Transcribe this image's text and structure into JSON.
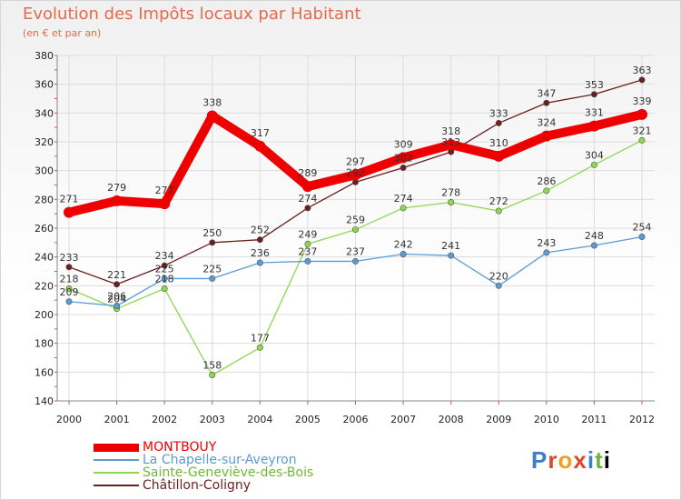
{
  "chart_data": {
    "type": "line",
    "title": "Evolution des Impôts locaux par Habitant",
    "subtitle": "(en € et par an)",
    "x": [
      "2000",
      "2001",
      "2002",
      "2003",
      "2004",
      "2005",
      "2006",
      "2007",
      "2008",
      "2009",
      "2010",
      "2011",
      "2012"
    ],
    "ylim": [
      140,
      380
    ],
    "yticks": [
      140,
      160,
      180,
      200,
      220,
      240,
      260,
      280,
      300,
      320,
      340,
      360,
      380
    ],
    "grid": true,
    "legend_position": "bottom-left",
    "series": [
      {
        "name": "MONTBOUY",
        "color": "#ee0000",
        "values": [
          271,
          279,
          277,
          338,
          317,
          289,
          297,
          309,
          318,
          310,
          324,
          331,
          339
        ]
      },
      {
        "name": "La Chapelle-sur-Aveyron",
        "color": "#5b9bd5",
        "values": [
          209,
          206,
          225,
          225,
          236,
          237,
          237,
          242,
          241,
          220,
          243,
          248,
          254
        ]
      },
      {
        "name": "Sainte-Geneviève-des-Bois",
        "color": "#8ed850",
        "values": [
          218,
          204,
          218,
          158,
          177,
          249,
          259,
          274,
          278,
          272,
          286,
          304,
          321
        ]
      },
      {
        "name": "Châtillon-Coligny",
        "color": "#6b1e1e",
        "values": [
          233,
          221,
          234,
          250,
          252,
          274,
          292,
          302,
          313,
          333,
          347,
          353,
          363
        ]
      }
    ]
  },
  "logo_letters": [
    "P",
    "r",
    "o",
    "x",
    "i",
    "t",
    "i"
  ]
}
